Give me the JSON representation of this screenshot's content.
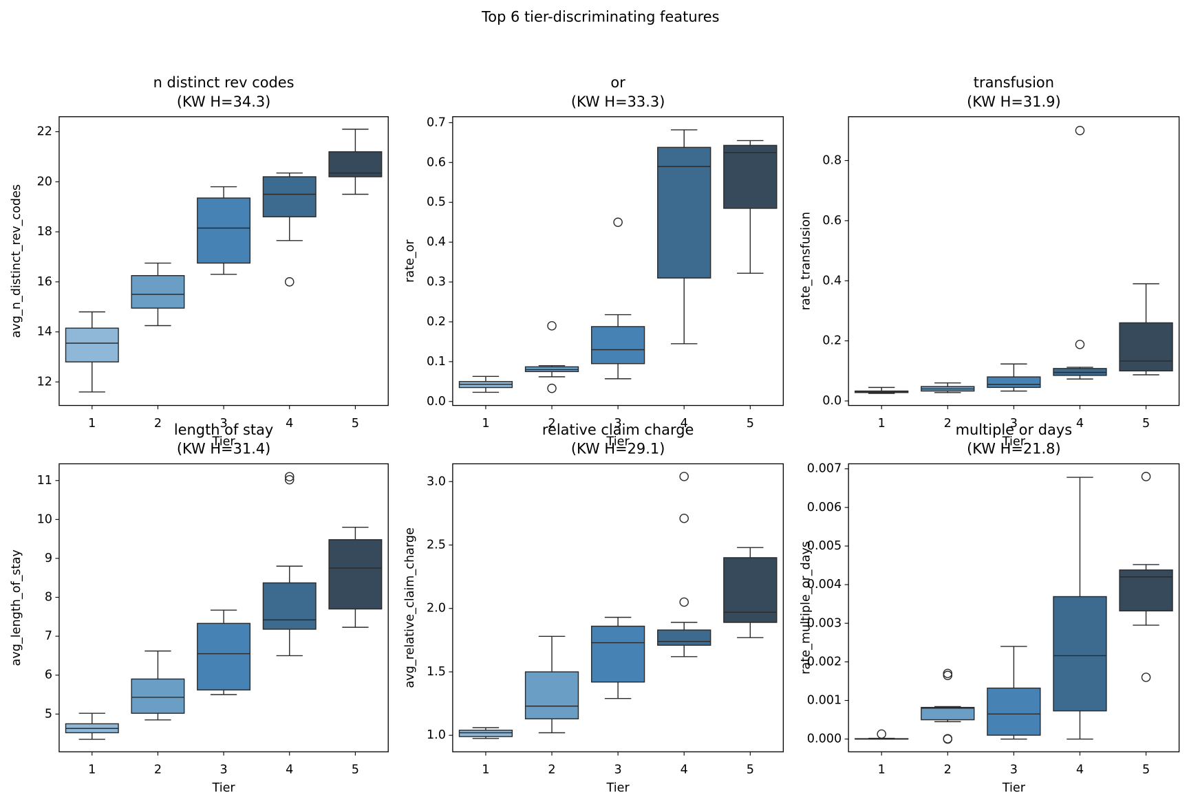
{
  "title": "Top 6 tier-discriminating features",
  "chart_data": [
    {
      "type": "box",
      "title": "n distinct rev codes",
      "subtitle": "(KW H=34.3)",
      "xlabel": "Tier",
      "ylabel": "avg_n_distinct_rev_codes",
      "categories": [
        "1",
        "2",
        "3",
        "4",
        "5"
      ],
      "colors": [
        "#8fb8d8",
        "#6a9ec5",
        "#4682b4",
        "#3d6a8f",
        "#374a5c"
      ],
      "whisker_low": [
        11.6,
        14.25,
        16.3,
        17.65,
        19.5
      ],
      "q1": [
        12.8,
        14.95,
        16.75,
        18.6,
        20.2
      ],
      "median": [
        13.55,
        15.5,
        18.15,
        19.5,
        20.35
      ],
      "q3": [
        14.15,
        16.25,
        19.35,
        20.2,
        21.2
      ],
      "whisker_high": [
        14.8,
        16.75,
        19.8,
        20.35,
        22.1
      ],
      "fliers": [
        [],
        [],
        [],
        [
          16.0
        ],
        []
      ],
      "ylim": [
        11.06,
        22.6
      ],
      "yticks": [
        12,
        14,
        16,
        18,
        20,
        22
      ]
    },
    {
      "type": "box",
      "title": "or",
      "subtitle": "(KW H=33.3)",
      "xlabel": "Tier",
      "ylabel": "rate_or",
      "categories": [
        "1",
        "2",
        "3",
        "4",
        "5"
      ],
      "colors": [
        "#8fb8d8",
        "#6a9ec5",
        "#4682b4",
        "#3d6a8f",
        "#374a5c"
      ],
      "whisker_low": [
        0.023,
        0.062,
        0.057,
        0.145,
        0.322
      ],
      "q1": [
        0.035,
        0.075,
        0.095,
        0.31,
        0.485
      ],
      "median": [
        0.043,
        0.08,
        0.13,
        0.59,
        0.625
      ],
      "q3": [
        0.05,
        0.087,
        0.188,
        0.638,
        0.643
      ],
      "whisker_high": [
        0.063,
        0.09,
        0.218,
        0.682,
        0.655
      ],
      "fliers": [
        [],
        [
          0.19,
          0.033
        ],
        [
          0.45
        ],
        [],
        []
      ],
      "ylim": [
        -0.01,
        0.715
      ],
      "yticks": [
        {
          "value": 0,
          "label": "0.0"
        },
        0.1,
        0.2,
        0.3,
        0.4,
        0.5,
        0.6,
        0.7
      ]
    },
    {
      "type": "box",
      "title": "transfusion",
      "subtitle": "(KW H=31.9)",
      "xlabel": "Tier",
      "ylabel": "rate_transfusion",
      "categories": [
        "1",
        "2",
        "3",
        "4",
        "5"
      ],
      "colors": [
        "#8fb8d8",
        "#6a9ec5",
        "#4682b4",
        "#3d6a8f",
        "#374a5c"
      ],
      "whisker_low": [
        0.025,
        0.028,
        0.033,
        0.073,
        0.087
      ],
      "q1": [
        0.028,
        0.033,
        0.045,
        0.085,
        0.1
      ],
      "median": [
        0.03,
        0.04,
        0.055,
        0.095,
        0.133
      ],
      "q3": [
        0.033,
        0.048,
        0.08,
        0.108,
        0.26
      ],
      "whisker_high": [
        0.045,
        0.06,
        0.123,
        0.112,
        0.39
      ],
      "fliers": [
        [],
        [],
        [],
        [
          0.9,
          0.188
        ],
        []
      ],
      "ylim": [
        -0.015,
        0.946
      ],
      "yticks": [
        {
          "value": 0,
          "label": "0.0"
        },
        0.2,
        0.4,
        0.6,
        0.8
      ]
    },
    {
      "type": "box",
      "title": "length of stay",
      "subtitle": "(KW H=31.4)",
      "xlabel": "Tier",
      "ylabel": "avg_length_of_stay",
      "categories": [
        "1",
        "2",
        "3",
        "4",
        "5"
      ],
      "colors": [
        "#8fb8d8",
        "#6a9ec5",
        "#4682b4",
        "#3d6a8f",
        "#374a5c"
      ],
      "whisker_low": [
        4.35,
        4.85,
        5.5,
        6.5,
        7.23
      ],
      "q1": [
        4.52,
        5.02,
        5.62,
        7.18,
        7.7
      ],
      "median": [
        4.63,
        5.43,
        6.55,
        7.42,
        8.75
      ],
      "q3": [
        4.75,
        5.9,
        7.33,
        8.37,
        9.48
      ],
      "whisker_high": [
        5.02,
        6.62,
        7.67,
        8.8,
        9.8
      ],
      "fliers": [
        [],
        [],
        [],
        [
          11.02,
          11.1
        ],
        []
      ],
      "ylim": [
        4.03,
        11.43
      ],
      "yticks": [
        5,
        6,
        7,
        8,
        9,
        10,
        11
      ]
    },
    {
      "type": "box",
      "title": "relative claim charge",
      "subtitle": "(KW H=29.1)",
      "xlabel": "Tier",
      "ylabel": "avg_relative_claim_charge",
      "categories": [
        "1",
        "2",
        "3",
        "4",
        "5"
      ],
      "colors": [
        "#8fb8d8",
        "#6a9ec5",
        "#4682b4",
        "#3d6a8f",
        "#374a5c"
      ],
      "whisker_low": [
        0.975,
        1.02,
        1.29,
        1.62,
        1.77
      ],
      "q1": [
        0.99,
        1.13,
        1.42,
        1.71,
        1.89
      ],
      "median": [
        1.02,
        1.23,
        1.73,
        1.74,
        1.97
      ],
      "q3": [
        1.04,
        1.5,
        1.86,
        1.83,
        2.4
      ],
      "whisker_high": [
        1.06,
        1.78,
        1.93,
        1.89,
        2.48
      ],
      "fliers": [
        [],
        [],
        [],
        [
          3.04,
          2.71,
          2.05
        ],
        []
      ],
      "ylim": [
        0.87,
        3.14
      ],
      "yticks": [
        {
          "value": 1,
          "label": "1.0"
        },
        1.5,
        {
          "value": 2,
          "label": "2.0"
        },
        2.5,
        {
          "value": 3,
          "label": "3.0"
        }
      ]
    },
    {
      "type": "box",
      "title": "multiple or days",
      "subtitle": "(KW H=21.8)",
      "xlabel": "Tier",
      "ylabel": "rate_multiple_or_days",
      "categories": [
        "1",
        "2",
        "3",
        "4",
        "5"
      ],
      "colors": [
        "#8fb8d8",
        "#6a9ec5",
        "#4682b4",
        "#3d6a8f",
        "#374a5c"
      ],
      "whisker_low": [
        0,
        0.00045,
        0,
        0,
        0.00295
      ],
      "q1": [
        0,
        0.0005,
        0.0001,
        0.00073,
        0.00332
      ],
      "median": [
        0,
        0.0008,
        0.00065,
        0.00216,
        0.0042
      ],
      "q3": [
        1e-05,
        0.00082,
        0.00132,
        0.00369,
        0.00438
      ],
      "whisker_high": [
        2e-05,
        0.00084,
        0.0024,
        0.00678,
        0.00452
      ],
      "fliers": [
        [
          0.00013
        ],
        [
          0.0017,
          0.00165,
          0,
          1e-05
        ],
        [],
        [],
        [
          0.0068,
          0.0016
        ]
      ],
      "ylim": [
        -0.00033,
        0.00713
      ],
      "yticks": [
        {
          "value": 0,
          "label": "0.000"
        },
        {
          "value": 0.001,
          "label": "0.001"
        },
        {
          "value": 0.002,
          "label": "0.002"
        },
        {
          "value": 0.003,
          "label": "0.003"
        },
        {
          "value": 0.004,
          "label": "0.004"
        },
        {
          "value": 0.005,
          "label": "0.005"
        },
        {
          "value": 0.006,
          "label": "0.006"
        },
        {
          "value": 0.007,
          "label": "0.007"
        }
      ]
    }
  ]
}
